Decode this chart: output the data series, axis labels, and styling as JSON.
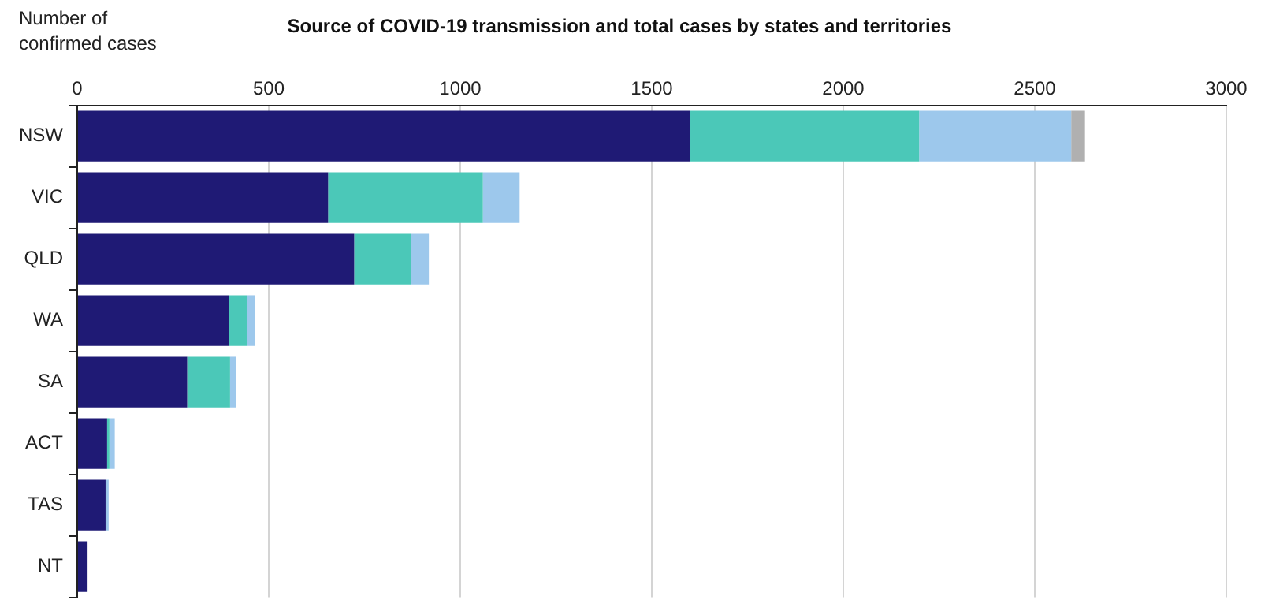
{
  "chart_data": {
    "type": "bar",
    "orientation": "horizontal",
    "stacked": true,
    "title": "Source of COVID-19 transmission and total cases by states and territories",
    "xlabel": "Number of confirmed cases",
    "categories": [
      "NSW",
      "VIC",
      "QLD",
      "WA",
      "SA",
      "ACT",
      "TAS",
      "NT"
    ],
    "series": [
      {
        "color": "#1f1a75",
        "values": [
          1600,
          655,
          723,
          396,
          287,
          78,
          74,
          27
        ]
      },
      {
        "color": "#4bc8b8",
        "values": [
          598,
          404,
          148,
          47,
          112,
          6,
          0,
          0
        ]
      },
      {
        "color": "#9dc8ec",
        "values": [
          397,
          96,
          47,
          20,
          16,
          14,
          8,
          0
        ]
      },
      {
        "color": "#b0b0b0",
        "values": [
          36,
          0,
          0,
          0,
          null,
          0,
          0,
          0
        ]
      }
    ],
    "xlim": [
      0,
      3000
    ],
    "xticks": [
      0,
      500,
      1000,
      1500,
      2000,
      2500,
      3000
    ],
    "grid": "x",
    "legend": false
  }
}
